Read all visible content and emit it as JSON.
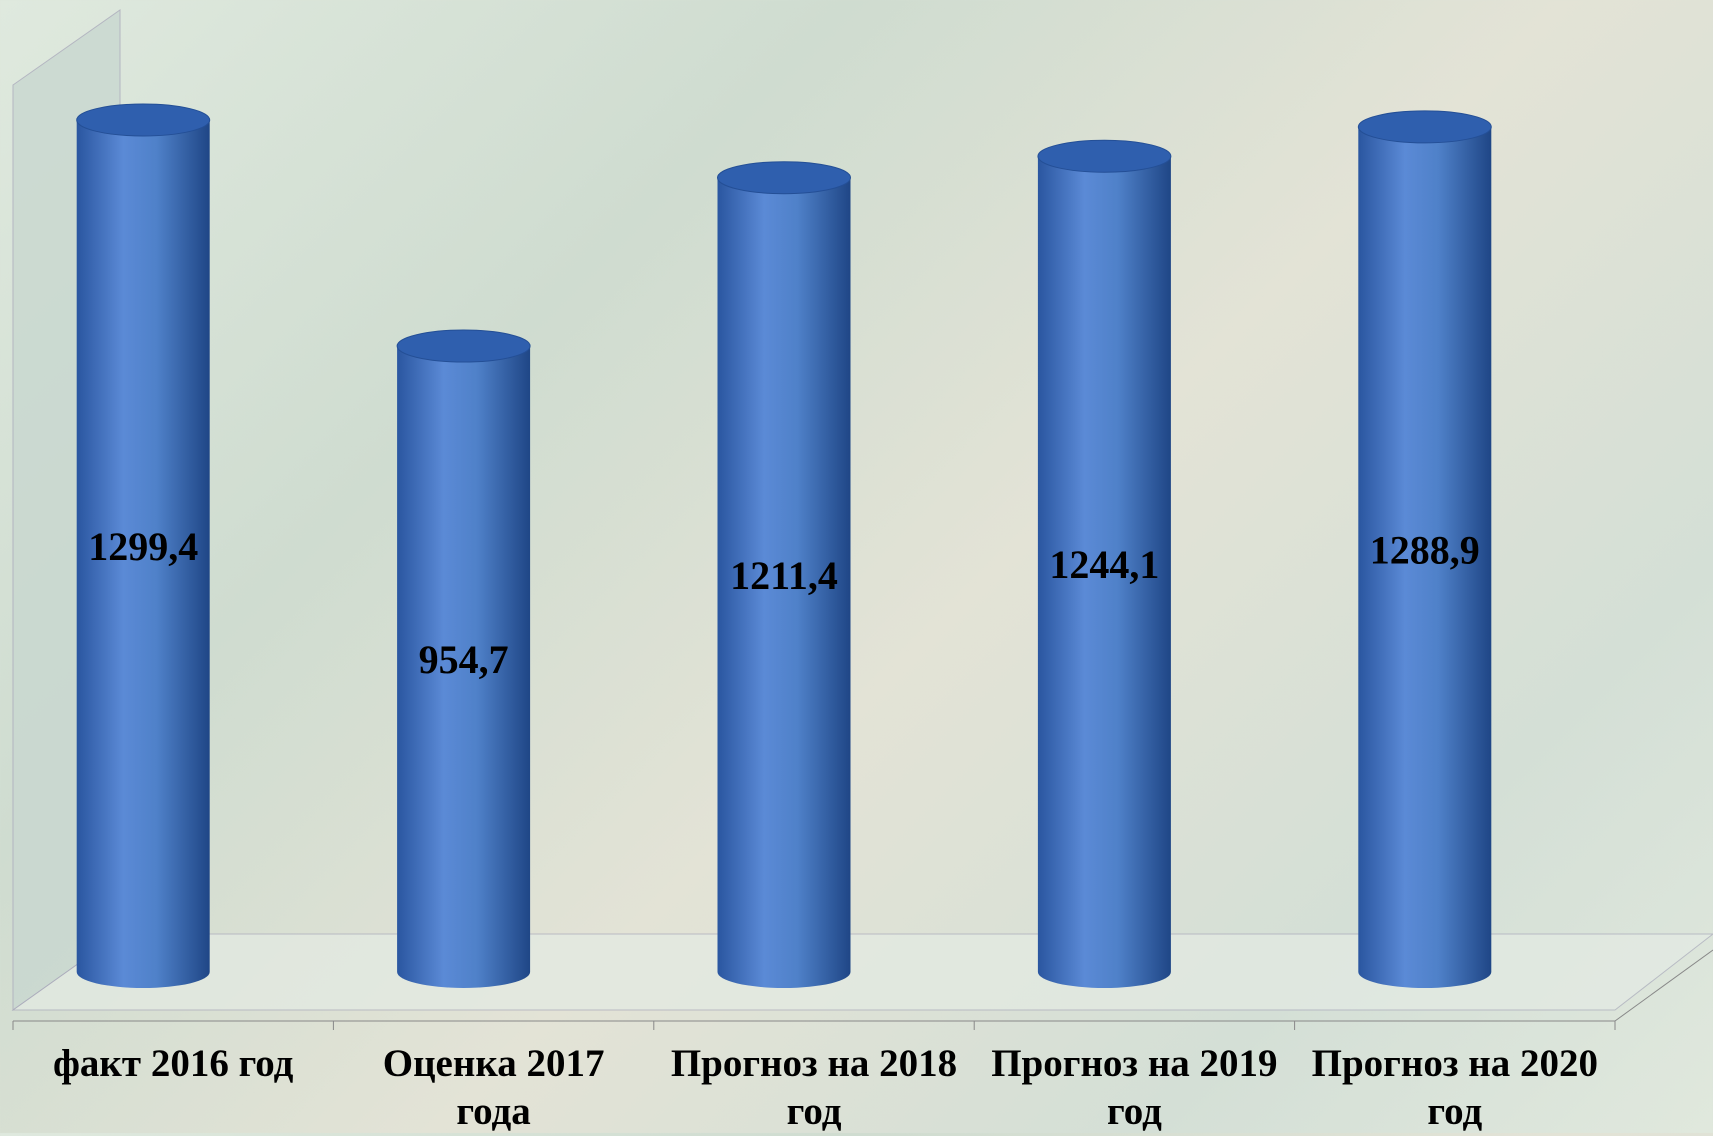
{
  "chart_data": {
    "type": "bar3d",
    "categories": [
      "факт 2016 год",
      "Оценка 2017 года",
      "Прогноз на 2018 год",
      "Прогноз на 2019 год",
      "Прогноз на 2020 год"
    ],
    "values": [
      1299.4,
      954.7,
      1211.4,
      1244.1,
      1288.9
    ],
    "value_labels": [
      "1299,4",
      "954,7",
      "1211,4",
      "1244,1",
      "1288,9"
    ],
    "color": "#4f81c9"
  }
}
